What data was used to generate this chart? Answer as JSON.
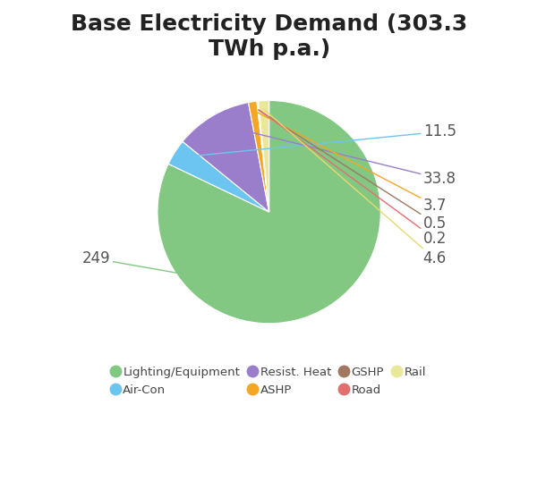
{
  "title": "Base Electricity Demand (303.3\nTWh p.a.)",
  "slices": [
    {
      "label": "Lighting/Equipment",
      "value": 249,
      "color": "#82c882"
    },
    {
      "label": "Air-Con",
      "value": 11.5,
      "color": "#6cc5f0"
    },
    {
      "label": "Resist. Heat",
      "value": 33.8,
      "color": "#9b7ecb"
    },
    {
      "label": "ASHP",
      "value": 3.7,
      "color": "#f5a623"
    },
    {
      "label": "GSHP",
      "value": 0.5,
      "color": "#a07860"
    },
    {
      "label": "Road",
      "value": 0.2,
      "color": "#e07070"
    },
    {
      "label": "Rail",
      "value": 4.6,
      "color": "#e8e898"
    }
  ],
  "ann_color": "#555555",
  "line_colors": {
    "Lighting/Equipment": "#82c882",
    "Air-Con": "#6cc5f0",
    "Resist. Heat": "#9b7ecb",
    "ASHP": "#f5a623",
    "GSHP": "#a07860",
    "Road": "#e07070",
    "Rail": "#e8d870"
  },
  "title_fontsize": 18,
  "label_fontsize": 12,
  "background_color": "#ffffff"
}
